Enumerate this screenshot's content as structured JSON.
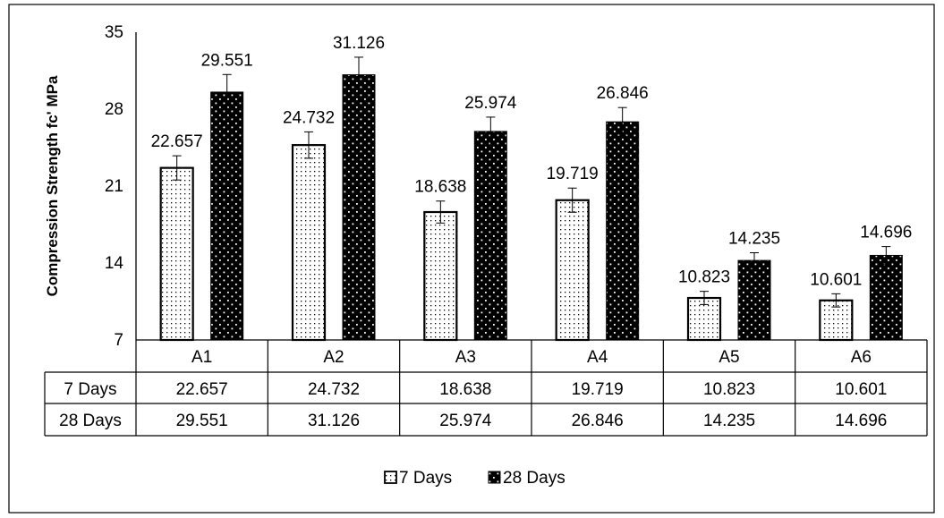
{
  "chart_data": {
    "type": "bar",
    "title": "",
    "xlabel": "",
    "ylabel": "Compression Strength fc' MPa",
    "ylim": [
      7,
      35
    ],
    "yticks": [
      7,
      14,
      21,
      28,
      35
    ],
    "categories": [
      "A1",
      "A2",
      "A3",
      "A4",
      "A5",
      "A6"
    ],
    "series": [
      {
        "name": "7 Days",
        "values": [
          22.657,
          24.732,
          18.638,
          19.719,
          10.823,
          10.601
        ],
        "error": [
          1.1,
          1.2,
          1.0,
          1.1,
          0.6,
          0.6
        ]
      },
      {
        "name": "28 Days",
        "values": [
          29.551,
          31.126,
          25.974,
          26.846,
          14.235,
          14.696
        ],
        "error": [
          1.6,
          1.6,
          1.3,
          1.3,
          0.7,
          0.8
        ]
      }
    ],
    "data_labels": [
      [
        "22.657",
        "24.732",
        "18.638",
        "19.719",
        "10.823",
        "10.601"
      ],
      [
        "29.551",
        "31.126",
        "25.974",
        "26.846",
        "14.235",
        "14.696"
      ]
    ],
    "data_table": true,
    "legend_position": "bottom-center",
    "grid": false,
    "error_bars": true,
    "colors": {
      "series_7_days_fill": "#ffffff",
      "series_28_days_fill": "#000000",
      "axis": "#000000"
    }
  }
}
